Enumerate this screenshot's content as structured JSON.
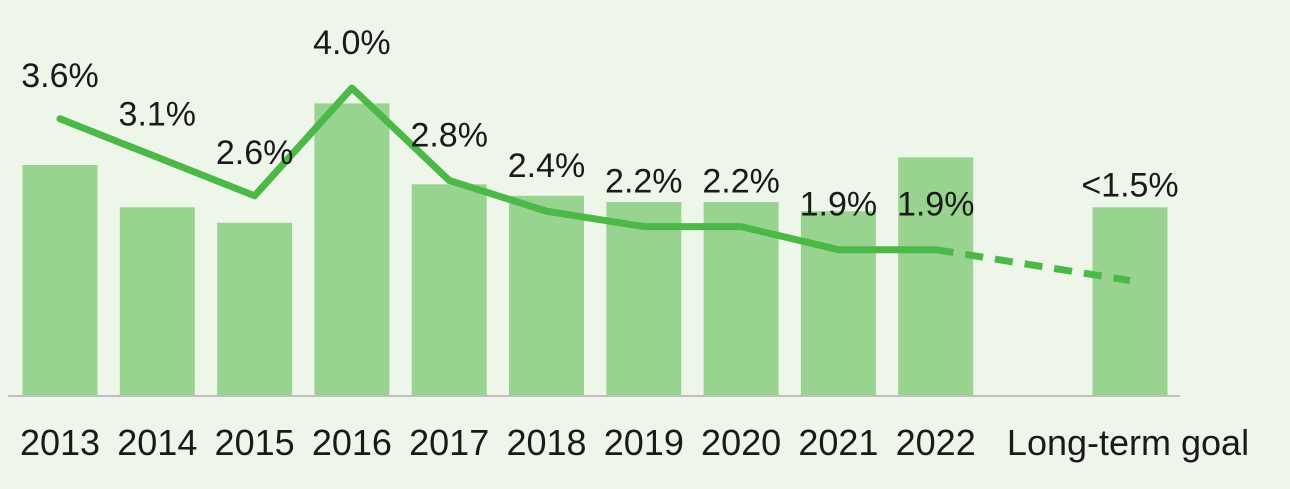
{
  "chart_data": {
    "type": "bar",
    "categories": [
      "2013",
      "2014",
      "2015",
      "2016",
      "2017",
      "2018",
      "2019",
      "2020",
      "2021",
      "2022",
      "Long-term goal"
    ],
    "series": [
      {
        "type": "bar",
        "values": [
          3.0,
          2.45,
          2.25,
          3.8,
          2.75,
          2.6,
          2.52,
          2.52,
          2.4,
          3.1,
          2.45
        ]
      },
      {
        "type": "line",
        "values": [
          3.6,
          3.1,
          2.6,
          4.0,
          2.8,
          2.4,
          2.2,
          2.2,
          1.9,
          1.9,
          1.5
        ],
        "labels": [
          "3.6%",
          "3.1%",
          "2.6%",
          "4.0%",
          "2.8%",
          "2.4%",
          "2.2%",
          "2.2%",
          "1.9%",
          "1.9%",
          "<1.5%"
        ],
        "dashed_from_index": 9
      }
    ],
    "ylim": [
      0,
      4.0
    ],
    "grid": false,
    "legend": "none",
    "colors": {
      "background": "#EEF6EA",
      "bar": "#98D490",
      "line": "#4CB848",
      "axis": "#BFBFBF",
      "text": "#1A1A1A"
    }
  }
}
